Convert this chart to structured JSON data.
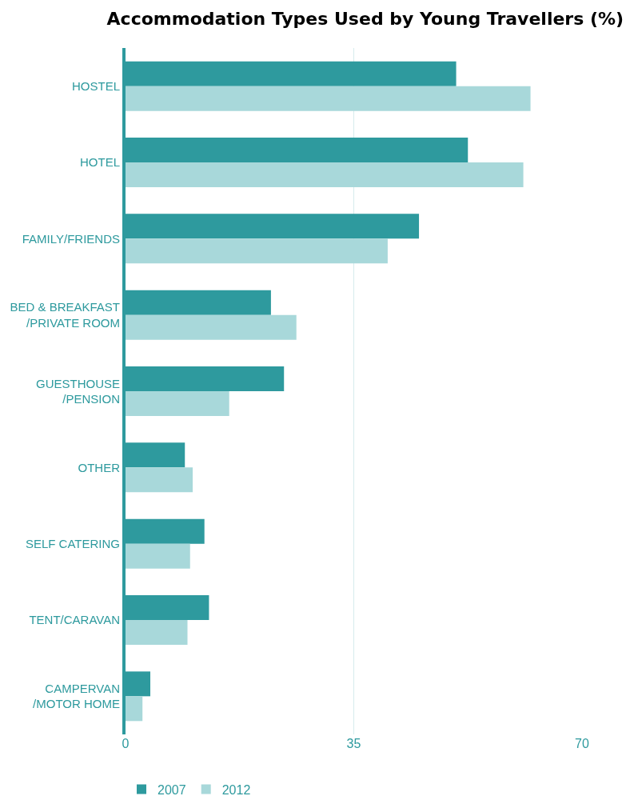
{
  "chart_data": {
    "type": "bar",
    "orientation": "horizontal",
    "title": "Accommodation Types Used by Young Travellers (%)",
    "categories": [
      "HOSTEL",
      "HOTEL",
      "FAMILY/FRIENDS",
      "BED & BREAKFAST\n/PRIVATE ROOM",
      "GUESTHOUSE\n/PENSION",
      "OTHER",
      "SELF CATERING",
      "TENT/CARAVAN",
      "CAMPERVAN\n/MOTOR HOME"
    ],
    "series": [
      {
        "name": "2007",
        "color": "#2e9a9e",
        "values": [
          50.7,
          52.5,
          45,
          22.3,
          24.3,
          9.1,
          12.1,
          12.8,
          3.8
        ]
      },
      {
        "name": "2012",
        "color": "#a8d8da",
        "values": [
          62.1,
          61,
          40.2,
          26.2,
          15.9,
          10.3,
          9.9,
          9.5,
          2.6
        ]
      }
    ],
    "xlim": [
      0,
      70
    ],
    "xticks": [
      0,
      35,
      70
    ],
    "grid": "x",
    "legend": "bottom left"
  }
}
